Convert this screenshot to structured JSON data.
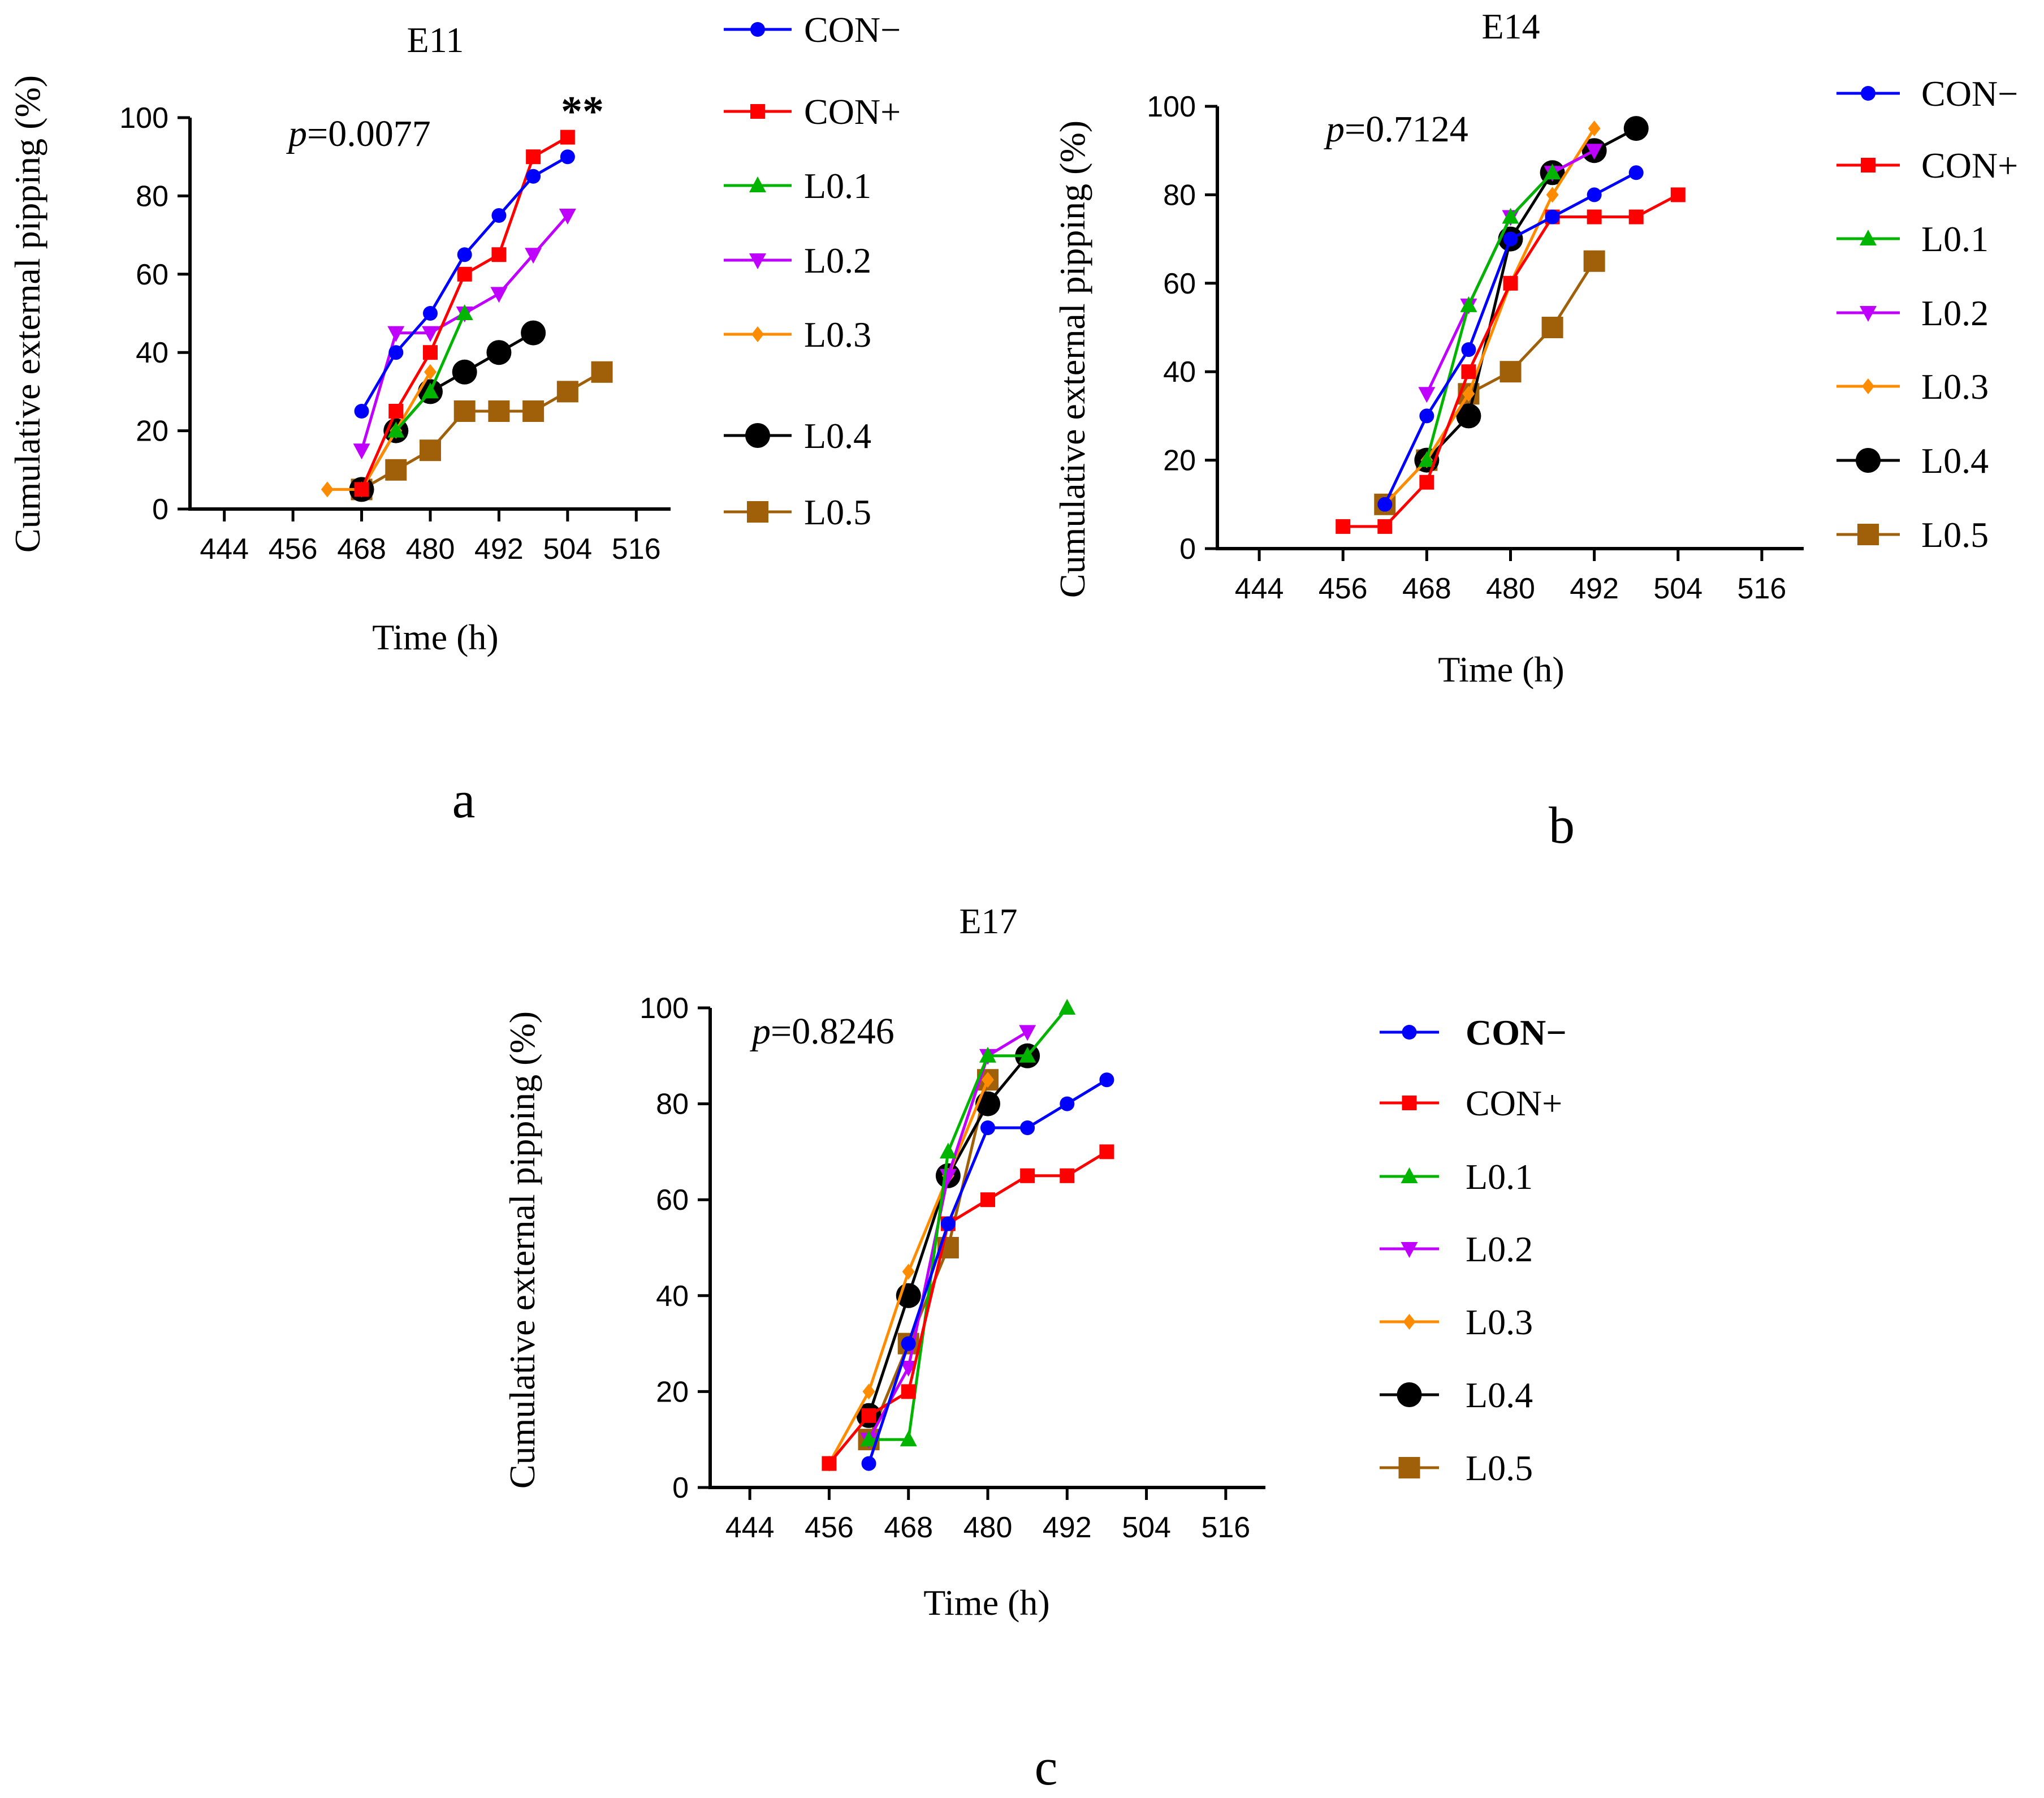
{
  "series_colors": {
    "CON−": "#0000ff",
    "CON+": "#ff0000",
    "L0.1": "#00b400",
    "L0.2": "#c000ff",
    "L0.3": "#ff8c00",
    "L0.4": "#000000",
    "L0.5": "#a0600a"
  },
  "series_markers": {
    "CON−": "circle",
    "CON+": "square",
    "L0.1": "triangle-up",
    "L0.2": "triangle-down",
    "L0.3": "diamond",
    "L0.4": "big-circle",
    "L0.5": "big-square"
  },
  "chart_data": [
    {
      "type": "line",
      "id": "a",
      "panel_label": "a",
      "title": "E11",
      "xlabel": "Time (h)",
      "ylabel": "Cumulative external pipping (%)",
      "xlim": [
        438,
        522
      ],
      "ylim": [
        0,
        100
      ],
      "xticks": [
        444,
        456,
        468,
        480,
        492,
        504,
        516
      ],
      "yticks": [
        0,
        20,
        40,
        60,
        80,
        100
      ],
      "p_prefix": "p",
      "p_value": "=0.0077",
      "significance": "**",
      "legend": [
        "CON−",
        "CON+",
        "L0.1",
        "L0.2",
        "L0.3",
        "L0.4",
        "L0.5"
      ],
      "series": [
        {
          "name": "CON−",
          "x": [
            468,
            474,
            480,
            486,
            492,
            498,
            504
          ],
          "y": [
            25,
            40,
            50,
            65,
            75,
            85,
            90
          ]
        },
        {
          "name": "CON+",
          "x": [
            468,
            474,
            480,
            486,
            492,
            498,
            504
          ],
          "y": [
            5,
            25,
            40,
            60,
            65,
            90,
            95
          ]
        },
        {
          "name": "L0.1",
          "x": [
            474,
            480,
            486
          ],
          "y": [
            20,
            30,
            50
          ]
        },
        {
          "name": "L0.2",
          "x": [
            468,
            474,
            480,
            486,
            492,
            498,
            504
          ],
          "y": [
            15,
            45,
            45,
            50,
            55,
            65,
            75
          ]
        },
        {
          "name": "L0.3",
          "x": [
            462,
            468,
            474,
            480
          ],
          "y": [
            5,
            5,
            20,
            35
          ]
        },
        {
          "name": "L0.4",
          "x": [
            468,
            474,
            480,
            486,
            492,
            498
          ],
          "y": [
            5,
            20,
            30,
            35,
            40,
            45
          ]
        },
        {
          "name": "L0.5",
          "x": [
            468,
            474,
            480,
            486,
            492,
            498,
            504,
            510
          ],
          "y": [
            5,
            10,
            15,
            25,
            25,
            25,
            30,
            35
          ]
        }
      ]
    },
    {
      "type": "line",
      "id": "b",
      "panel_label": "b",
      "title": "E14",
      "xlabel": "Time (h)",
      "ylabel": "Cumulative external pipping (%)",
      "xlim": [
        438,
        522
      ],
      "ylim": [
        0,
        100
      ],
      "xticks": [
        444,
        456,
        468,
        480,
        492,
        504,
        516
      ],
      "yticks": [
        0,
        20,
        40,
        60,
        80,
        100
      ],
      "p_prefix": "p",
      "p_value": "=0.7124",
      "significance": "",
      "legend": [
        "CON−",
        "CON+",
        "L0.1",
        "L0.2",
        "L0.3",
        "L0.4",
        "L0.5"
      ],
      "series": [
        {
          "name": "CON−",
          "x": [
            462,
            468,
            474,
            480,
            486,
            492,
            498
          ],
          "y": [
            10,
            30,
            45,
            70,
            75,
            80,
            85
          ]
        },
        {
          "name": "CON+",
          "x": [
            456,
            462,
            468,
            474,
            480,
            486,
            492,
            498,
            504
          ],
          "y": [
            5,
            5,
            15,
            40,
            60,
            75,
            75,
            75,
            80
          ]
        },
        {
          "name": "L0.1",
          "x": [
            468,
            474,
            480,
            486
          ],
          "y": [
            20,
            55,
            75,
            85
          ]
        },
        {
          "name": "L0.2",
          "x": [
            468,
            474,
            480,
            486,
            492
          ],
          "y": [
            35,
            55,
            75,
            85,
            90
          ]
        },
        {
          "name": "L0.3",
          "x": [
            462,
            468,
            474,
            480,
            486,
            492
          ],
          "y": [
            10,
            20,
            35,
            60,
            80,
            95
          ]
        },
        {
          "name": "L0.4",
          "x": [
            468,
            474,
            480,
            486,
            492,
            498
          ],
          "y": [
            20,
            30,
            70,
            85,
            90,
            95
          ]
        },
        {
          "name": "L0.5",
          "x": [
            462,
            468,
            474,
            480,
            486,
            492
          ],
          "y": [
            10,
            20,
            35,
            40,
            50,
            65
          ]
        }
      ]
    },
    {
      "type": "line",
      "id": "c",
      "panel_label": "c",
      "title": "E17",
      "xlabel": "Time (h)",
      "ylabel": "Cumulative external pipping (%)",
      "xlim": [
        438,
        522
      ],
      "ylim": [
        0,
        100
      ],
      "xticks": [
        444,
        456,
        468,
        480,
        492,
        504,
        516
      ],
      "yticks": [
        0,
        20,
        40,
        60,
        80,
        100
      ],
      "p_prefix": "p",
      "p_value": "=0.8246",
      "significance": "",
      "legend": [
        "CON−",
        "CON+",
        "L0.1",
        "L0.2",
        "L0.3",
        "L0.4",
        "L0.5"
      ],
      "series": [
        {
          "name": "CON−",
          "x": [
            462,
            468,
            474,
            480,
            486,
            492,
            498
          ],
          "y": [
            5,
            30,
            55,
            75,
            75,
            80,
            85
          ]
        },
        {
          "name": "CON+",
          "x": [
            456,
            462,
            468,
            474,
            480,
            486,
            492,
            498
          ],
          "y": [
            5,
            15,
            20,
            55,
            60,
            65,
            65,
            70
          ]
        },
        {
          "name": "L0.1",
          "x": [
            462,
            468,
            474,
            480,
            486,
            492
          ],
          "y": [
            10,
            10,
            70,
            90,
            90,
            100
          ]
        },
        {
          "name": "L0.2",
          "x": [
            462,
            468,
            474,
            480,
            486
          ],
          "y": [
            10,
            25,
            65,
            90,
            95
          ]
        },
        {
          "name": "L0.3",
          "x": [
            456,
            462,
            468,
            474,
            480
          ],
          "y": [
            5,
            20,
            45,
            65,
            85
          ]
        },
        {
          "name": "L0.4",
          "x": [
            462,
            468,
            474,
            480,
            486
          ],
          "y": [
            15,
            40,
            65,
            80,
            90
          ]
        },
        {
          "name": "L0.5",
          "x": [
            462,
            468,
            474,
            480
          ],
          "y": [
            10,
            30,
            50,
            85
          ]
        }
      ]
    }
  ]
}
